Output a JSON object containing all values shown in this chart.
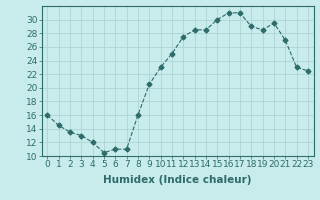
{
  "x": [
    0,
    1,
    2,
    3,
    4,
    5,
    6,
    7,
    8,
    9,
    10,
    11,
    12,
    13,
    14,
    15,
    16,
    17,
    18,
    19,
    20,
    21,
    22,
    23
  ],
  "y": [
    16,
    14.5,
    13.5,
    13,
    12,
    10.5,
    11,
    11,
    16,
    20.5,
    23,
    25,
    27.5,
    28.5,
    28.5,
    30,
    31,
    31,
    29,
    28.5,
    29.5,
    27,
    23,
    22.5
  ],
  "line_color": "#2e6b6b",
  "marker": "D",
  "marker_size": 2.5,
  "bg_color": "#c8ecec",
  "grid_color": "#aed4d4",
  "xlabel": "Humidex (Indice chaleur)",
  "xlabel_fontsize": 7.5,
  "xlim": [
    -0.5,
    23.5
  ],
  "ylim": [
    10,
    32
  ],
  "yticks": [
    10,
    12,
    14,
    16,
    18,
    20,
    22,
    24,
    26,
    28,
    30
  ],
  "xticks": [
    0,
    1,
    2,
    3,
    4,
    5,
    6,
    7,
    8,
    9,
    10,
    11,
    12,
    13,
    14,
    15,
    16,
    17,
    18,
    19,
    20,
    21,
    22,
    23
  ],
  "tick_fontsize": 6.5,
  "tick_color": "#2e6b6b",
  "axis_color": "#2e6b6b"
}
